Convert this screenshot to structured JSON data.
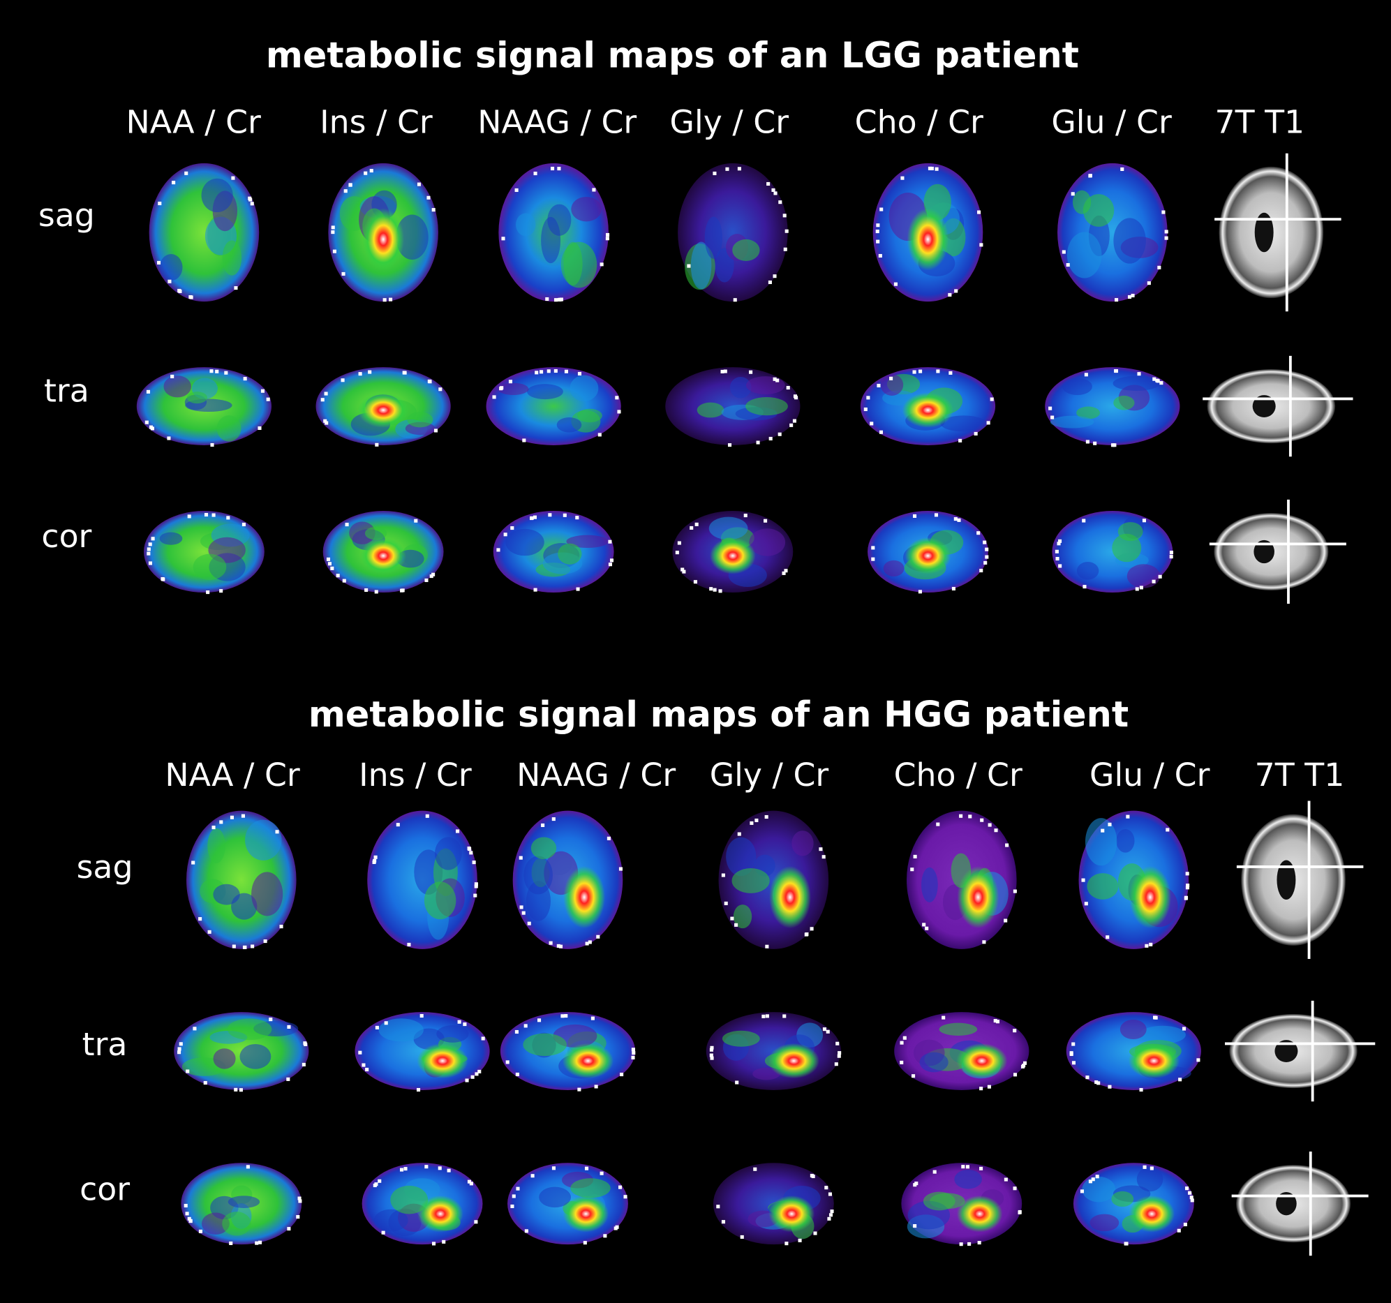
{
  "panels": [
    {
      "title": "metabolic signal maps of an LGG patient",
      "columns": [
        "NAA / Cr",
        "Ins / Cr",
        "NAAG / Cr",
        "Gly / Cr",
        "Cho / Cr",
        "Glu / Cr",
        "7T T1"
      ],
      "rows": [
        "sag",
        "tra",
        "cor"
      ]
    },
    {
      "title": "metabolic signal maps of an HGG patient",
      "columns": [
        "NAA / Cr",
        "Ins / Cr",
        "NAAG / Cr",
        "Gly / Cr",
        "Cho / Cr",
        "Glu / Cr",
        "7T T1"
      ],
      "rows": [
        "sag",
        "tra",
        "cor"
      ]
    }
  ]
}
